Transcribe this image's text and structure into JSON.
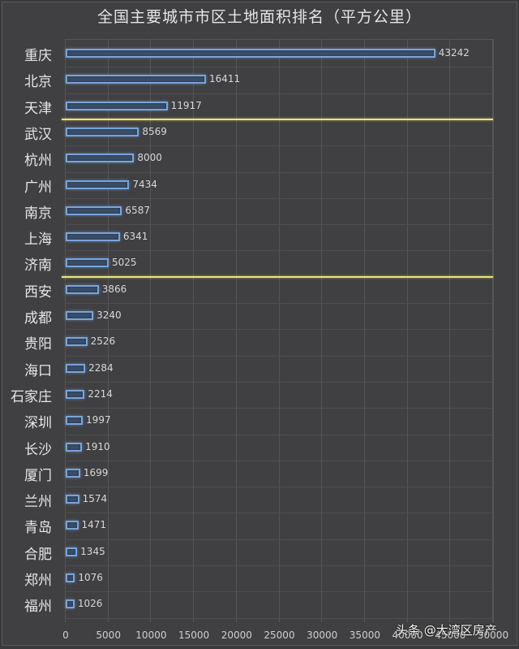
{
  "title": "全国主要城市市区土地面积排名（平方公里）",
  "watermark": "头条 @大湾区房产",
  "chart_data": {
    "type": "bar",
    "orientation": "horizontal",
    "title": "全国主要城市市区土地面积排名（平方公里）",
    "xlabel": "",
    "ylabel": "",
    "xlim": [
      0,
      50000
    ],
    "xticks": [
      "0",
      "5000",
      "10000",
      "15000",
      "20000",
      "25000",
      "30000",
      "35000",
      "40000",
      "45000",
      "50000"
    ],
    "grid": true,
    "legend": null,
    "categories": [
      "重庆",
      "北京",
      "天津",
      "武汉",
      "杭州",
      "广州",
      "南京",
      "上海",
      "济南",
      "西安",
      "成都",
      "贵阳",
      "海口",
      "石家庄",
      "深圳",
      "长沙",
      "厦门",
      "兰州",
      "青岛",
      "合肥",
      "郑州",
      "福州"
    ],
    "values": [
      43242,
      16411,
      11917,
      8569,
      8000,
      7434,
      6587,
      6341,
      5025,
      3866,
      3240,
      2526,
      2284,
      2214,
      1997,
      1910,
      1699,
      1574,
      1471,
      1345,
      1076,
      1026
    ],
    "annotations": [
      {
        "type": "separator-line",
        "after": "天津",
        "color": "#e8e67a"
      },
      {
        "type": "separator-line",
        "after": "济南",
        "color": "#e8e67a"
      }
    ],
    "colors": {
      "bar_fill": "#3c4f68",
      "bar_border": "#7aa4d6",
      "separator": "#e8e67a",
      "background": "#403f41"
    }
  }
}
